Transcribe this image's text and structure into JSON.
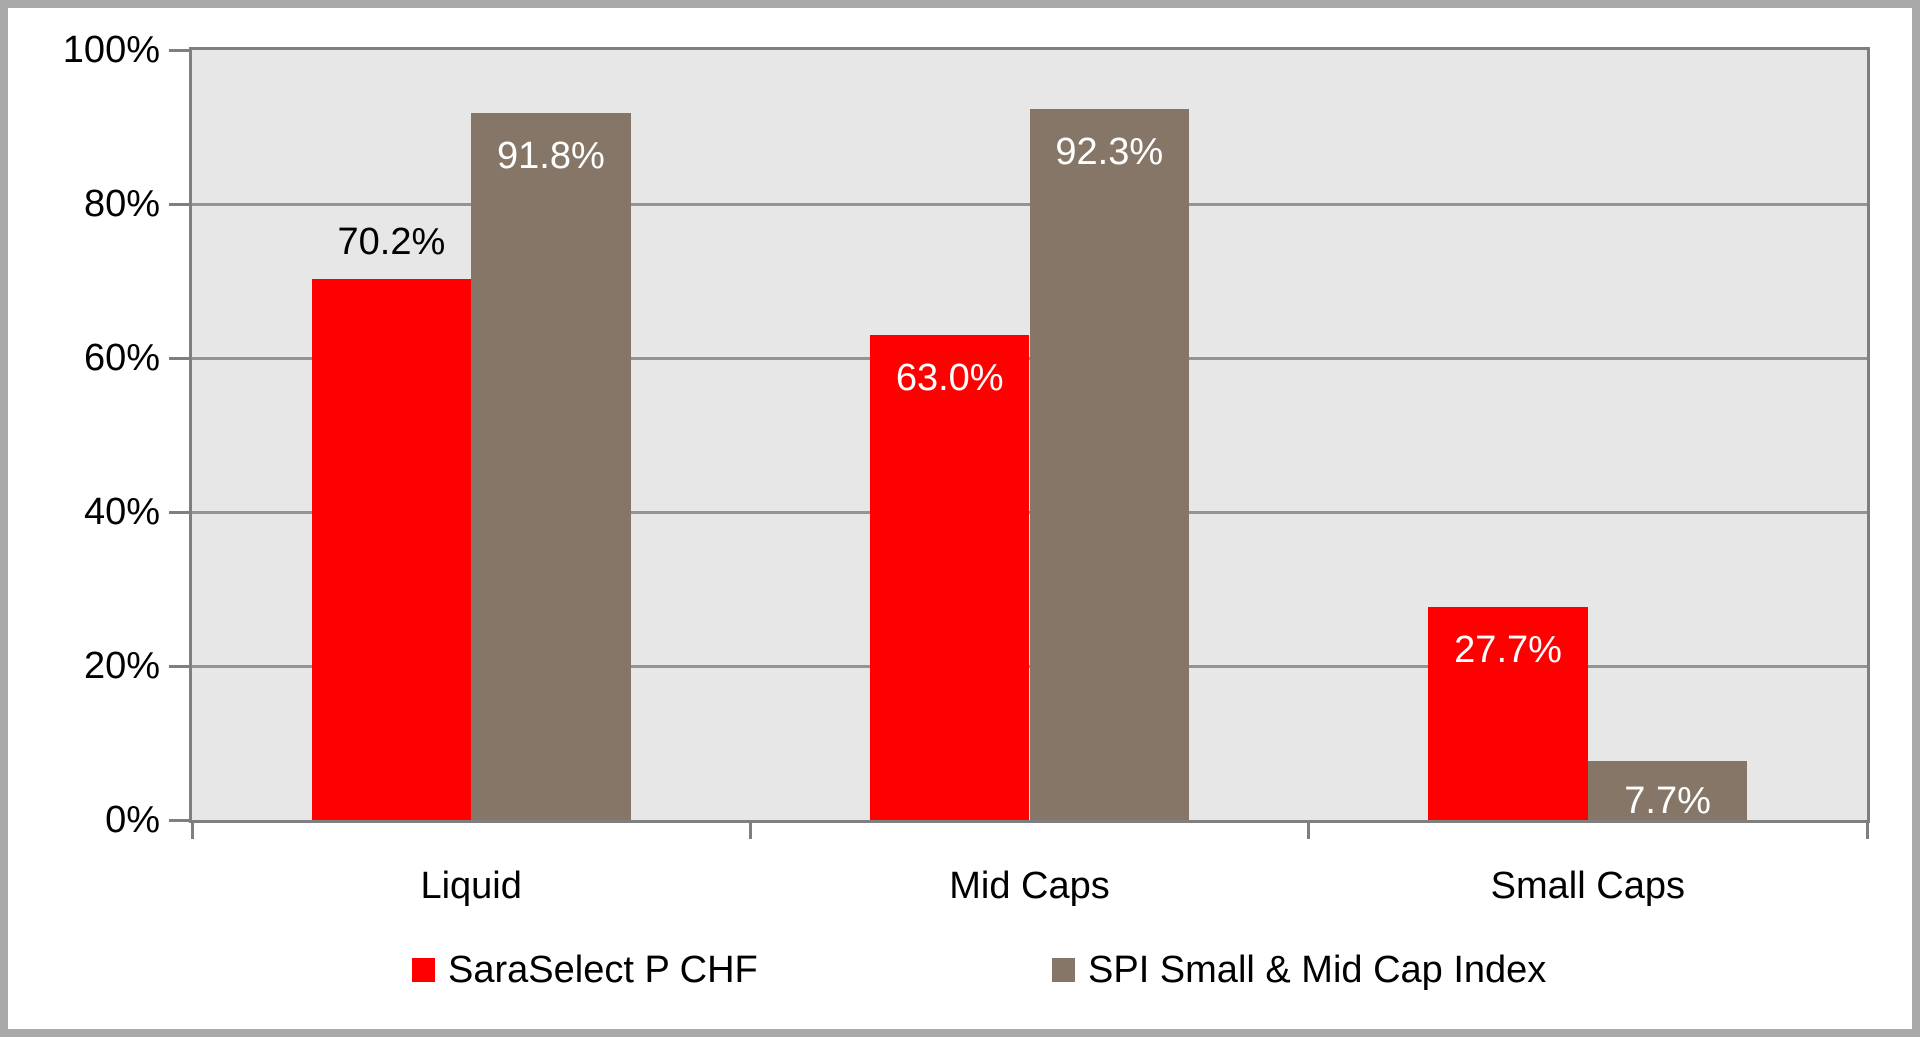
{
  "chart_data": {
    "type": "bar",
    "title": "",
    "xlabel": "",
    "ylabel": "",
    "categories": [
      "Liquid",
      "Mid Caps",
      "Small Caps"
    ],
    "series": [
      {
        "name": "SaraSelect P CHF",
        "color": "#ff0000",
        "values": [
          70.2,
          63.0,
          27.7
        ],
        "data_labels": [
          "70.2%",
          "63.0%",
          "27.7%"
        ],
        "label_placements": [
          "above",
          "inside",
          "inside"
        ]
      },
      {
        "name": "SPI Small & Mid Cap Index",
        "color": "#857668",
        "values": [
          91.8,
          92.3,
          7.7
        ],
        "data_labels": [
          "91.8%",
          "92.3%",
          "7.7%"
        ],
        "label_placements": [
          "inside",
          "inside",
          "inside"
        ]
      }
    ],
    "ylim": [
      0,
      100
    ],
    "yticks": [
      {
        "value": 100,
        "label": "100%"
      },
      {
        "value": 80,
        "label": "80%"
      },
      {
        "value": 60,
        "label": "60%"
      },
      {
        "value": 40,
        "label": "40%"
      },
      {
        "value": 20,
        "label": "20%"
      },
      {
        "value": 0,
        "label": "0%"
      }
    ],
    "grid": true,
    "gridline_values": [
      20,
      40,
      60,
      80
    ],
    "legend_position": "bottom",
    "gap_width_percent": 150
  },
  "colors": {
    "plot_background": "#e7e7e7",
    "plot_border": "#7f7f7f",
    "gridline": "#949494",
    "tick": "#7f7f7f",
    "outer_frame": "#a9a9a9",
    "label_above_text": "#000000",
    "label_inside_text": "#ffffff",
    "axis_text": "#000000"
  }
}
